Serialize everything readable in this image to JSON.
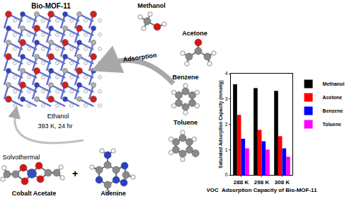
{
  "diagram": {
    "framework": {
      "label": "Bio-MOF-11"
    },
    "adsorbates": [
      {
        "label": "Methanol"
      },
      {
        "label": "Acetone"
      },
      {
        "label": "Benzene"
      },
      {
        "label": "Toluene"
      }
    ],
    "adsorption_arrow": {
      "label": "Adsorption"
    },
    "synthesis_arrow": {
      "labels": [
        "Ethanol",
        "393 K, 24 hr",
        "Solvothermal"
      ]
    },
    "reactants": [
      {
        "label": "Cobalt Acetate"
      },
      {
        "label": "+"
      },
      {
        "label": "Adenine"
      }
    ]
  },
  "chart_data": {
    "type": "bar",
    "categories": [
      "288 K",
      "298 K",
      "308 K"
    ],
    "series": [
      {
        "name": "Methanol",
        "color": "#000000",
        "values": [
          3.58,
          3.43,
          3.32
        ]
      },
      {
        "name": "Acetone",
        "color": "#ff0000",
        "values": [
          2.37,
          1.78,
          1.53
        ]
      },
      {
        "name": "Benzene",
        "color": "#0000ff",
        "values": [
          1.43,
          1.33,
          1.05
        ]
      },
      {
        "name": "Toluene",
        "color": "#ff00ff",
        "values": [
          1.05,
          1.0,
          0.72
        ]
      }
    ],
    "x_label": "VOC  Adsorption Capacity of Bio-MOF-11",
    "y_label": "Saturated Adsorption Capacity (mmol/g)",
    "ylim": [
      0,
      4
    ],
    "yticks": [
      0,
      1,
      2,
      3,
      4
    ],
    "grid": false,
    "legend": "right"
  }
}
